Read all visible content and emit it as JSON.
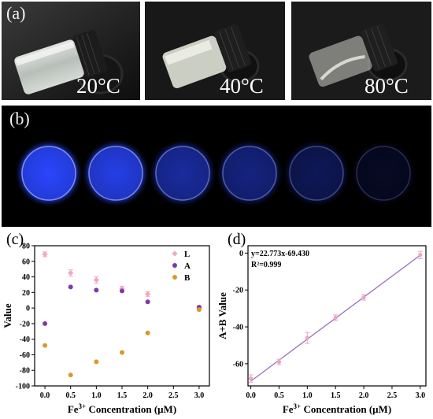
{
  "panel_a": {
    "label": "(a)",
    "photos": [
      {
        "temperature": "20°C",
        "state": "opaque gel"
      },
      {
        "temperature": "40°C",
        "state": "translucent gel"
      },
      {
        "temperature": "80°C",
        "state": "clear solution"
      }
    ]
  },
  "panel_b": {
    "label": "(b)",
    "discs": [
      {
        "glow": 1.0
      },
      {
        "glow": 0.9
      },
      {
        "glow": 0.62
      },
      {
        "glow": 0.5
      },
      {
        "glow": 0.34
      },
      {
        "glow": 0.14
      }
    ]
  },
  "colors": {
    "L": "#f0a8c8",
    "A": "#7b3aa6",
    "B": "#d99a2a",
    "fit_line": "#9a6fc0",
    "fit_points": "#e8a6c6",
    "glow": "#2a46ff"
  },
  "chart_data": [
    {
      "panel_label": "(c)",
      "type": "scatter",
      "xlabel": "Fe³⁺ Concentration (μM)",
      "ylabel": "Value",
      "xlim": [
        -0.2,
        3.2
      ],
      "ylim": [
        -100,
        80
      ],
      "x_ticks": [
        "0.0",
        "0.5",
        "1.0",
        "1.5",
        "2.0",
        "2.5",
        "3.0"
      ],
      "y_ticks": [
        "-100",
        "-80",
        "-60",
        "-40",
        "-20",
        "0",
        "20",
        "40",
        "60",
        "80"
      ],
      "legend": [
        "L",
        "A",
        "B"
      ],
      "legend_position": "top-right",
      "series": [
        {
          "name": "L",
          "x": [
            0.0,
            0.5,
            1.0,
            1.5,
            2.0,
            3.0
          ],
          "y": [
            69,
            45,
            36,
            25,
            18,
            1
          ],
          "err": [
            3,
            4,
            4,
            3,
            3,
            2
          ]
        },
        {
          "name": "A",
          "x": [
            0.0,
            0.5,
            1.0,
            1.5,
            2.0,
            3.0
          ],
          "y": [
            -20,
            27,
            23,
            22,
            8,
            1
          ]
        },
        {
          "name": "B",
          "x": [
            0.0,
            0.5,
            1.0,
            1.5,
            2.0,
            3.0
          ],
          "y": [
            -48,
            -86,
            -69,
            -57,
            -32,
            -2
          ]
        }
      ]
    },
    {
      "panel_label": "(d)",
      "type": "scatter",
      "xlabel": "Fe³⁺ Concentration (μM)",
      "ylabel": "A+B Value",
      "xlim": [
        -0.05,
        3.1
      ],
      "ylim": [
        -72,
        4
      ],
      "x_ticks": [
        "0.0",
        "0.5",
        "1.0",
        "1.5",
        "2.0",
        "2.5",
        "3.0"
      ],
      "y_ticks": [
        "0",
        "-20",
        "-40",
        "-60"
      ],
      "annotations": [
        "y=22.773x-69.430",
        "R²=0.999"
      ],
      "fit": {
        "slope": 22.773,
        "intercept": -69.43
      },
      "series": [
        {
          "x": [
            0.0,
            0.5,
            1.0,
            1.5,
            2.0,
            3.0
          ],
          "y": [
            -68,
            -59,
            -46,
            -35,
            -24,
            -1
          ],
          "err": [
            2,
            1.5,
            3,
            1.5,
            1.5,
            2
          ]
        }
      ]
    }
  ]
}
